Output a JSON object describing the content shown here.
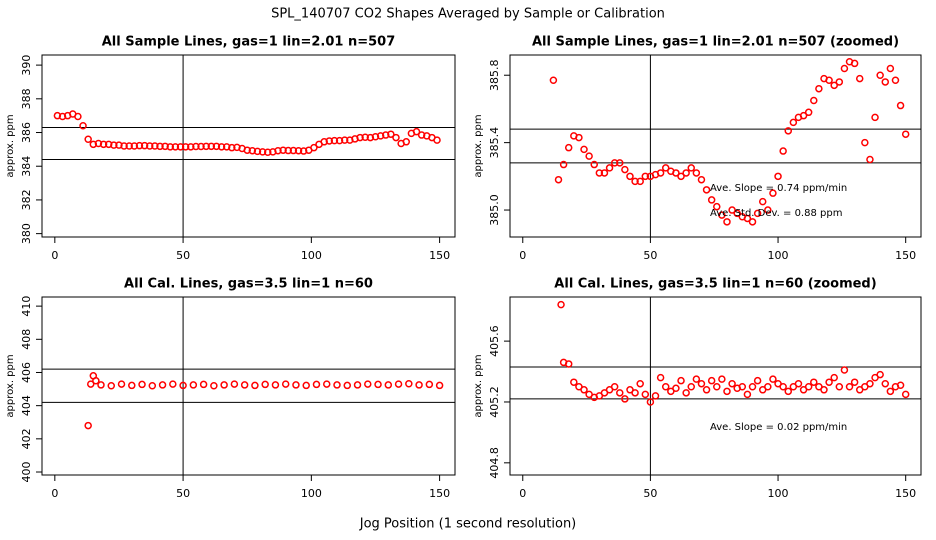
{
  "title": "SPL_140707  CO2 Shapes Averaged by Sample or Calibration",
  "x_label": "Jog Position (1 second resolution)",
  "chart_data": [
    {
      "type": "scatter",
      "title": "All Sample Lines, gas=1 lin=2.01 n=507",
      "y_label": "approx. ppm",
      "color": "#ff0000",
      "xlim": [
        -5,
        156
      ],
      "ylim": [
        379.8,
        390.6
      ],
      "xticks": [
        0,
        50,
        100,
        150
      ],
      "yticks": [
        380,
        382,
        384,
        386,
        388,
        390
      ],
      "hlines": [
        386.3,
        384.4
      ],
      "vline": 50,
      "x": [
        1,
        3,
        5,
        7,
        9,
        11,
        13,
        15,
        17,
        19,
        21,
        23,
        25,
        27,
        29,
        31,
        33,
        35,
        37,
        39,
        41,
        43,
        45,
        47,
        49,
        51,
        53,
        55,
        57,
        59,
        61,
        63,
        65,
        67,
        69,
        71,
        73,
        75,
        77,
        79,
        81,
        83,
        85,
        87,
        89,
        91,
        93,
        95,
        97,
        99,
        101,
        103,
        105,
        107,
        109,
        111,
        113,
        115,
        117,
        119,
        121,
        123,
        125,
        127,
        129,
        131,
        133,
        135,
        137,
        139,
        141,
        143,
        145,
        147,
        149
      ],
      "values": [
        387.0,
        386.95,
        387.0,
        387.1,
        386.95,
        386.4,
        385.6,
        385.3,
        385.35,
        385.3,
        385.3,
        385.25,
        385.25,
        385.2,
        385.2,
        385.2,
        385.22,
        385.22,
        385.2,
        385.2,
        385.18,
        385.18,
        385.15,
        385.15,
        385.15,
        385.15,
        385.15,
        385.17,
        385.17,
        385.18,
        385.18,
        385.18,
        385.15,
        385.15,
        385.1,
        385.12,
        385.05,
        384.95,
        384.92,
        384.88,
        384.85,
        384.83,
        384.85,
        384.92,
        384.95,
        384.93,
        384.93,
        384.92,
        384.9,
        384.95,
        385.1,
        385.3,
        385.45,
        385.5,
        385.52,
        385.52,
        385.55,
        385.55,
        385.62,
        385.7,
        385.72,
        385.7,
        385.75,
        385.8,
        385.85,
        385.9,
        385.7,
        385.35,
        385.45,
        385.95,
        386.05,
        385.85,
        385.8,
        385.7,
        385.55
      ]
    },
    {
      "type": "scatter",
      "title": "All Sample Lines, gas=1 lin=2.01 n=507 (zoomed)",
      "y_label": "approx. ppm",
      "color": "#ff0000",
      "xlim": [
        -5,
        156
      ],
      "ylim": [
        384.84,
        385.92
      ],
      "xticks": [
        0,
        50,
        100,
        150
      ],
      "yticks": [
        {
          "value": 385,
          "label": "385.0"
        },
        385.4,
        385.8
      ],
      "hlines": [
        385.48,
        385.28
      ],
      "vline": 50,
      "annotations": [
        "Ave. Slope =  0.74  ppm/min",
        "Ave. Std. Dev. =  0.88  ppm"
      ],
      "x": [
        12,
        14,
        16,
        18,
        20,
        22,
        24,
        26,
        28,
        30,
        32,
        34,
        36,
        38,
        40,
        42,
        44,
        46,
        48,
        50,
        52,
        54,
        56,
        58,
        60,
        62,
        64,
        66,
        68,
        70,
        72,
        74,
        76,
        78,
        80,
        82,
        84,
        86,
        88,
        90,
        92,
        94,
        96,
        98,
        100,
        102,
        104,
        106,
        108,
        110,
        112,
        114,
        116,
        118,
        120,
        122,
        124,
        126,
        128,
        130,
        132,
        134,
        136,
        138,
        140,
        142,
        144,
        146,
        148,
        150
      ],
      "values": [
        385.77,
        385.18,
        385.27,
        385.37,
        385.44,
        385.43,
        385.36,
        385.32,
        385.27,
        385.22,
        385.22,
        385.25,
        385.28,
        385.28,
        385.24,
        385.2,
        385.17,
        385.17,
        385.2,
        385.2,
        385.21,
        385.22,
        385.25,
        385.23,
        385.22,
        385.2,
        385.22,
        385.25,
        385.22,
        385.18,
        385.12,
        385.06,
        385.02,
        384.97,
        384.93,
        385.0,
        384.98,
        384.96,
        384.95,
        384.93,
        384.98,
        385.05,
        385.0,
        385.1,
        385.2,
        385.35,
        385.47,
        385.52,
        385.55,
        385.56,
        385.58,
        385.65,
        385.72,
        385.78,
        385.77,
        385.74,
        385.76,
        385.84,
        385.88,
        385.87,
        385.78,
        385.4,
        385.3,
        385.55,
        385.8,
        385.76,
        385.84,
        385.77,
        385.62,
        385.45
      ]
    },
    {
      "type": "scatter",
      "title": "All Cal. Lines, gas=3.5 lin=1 n=60",
      "y_label": "approx. ppm",
      "color": "#ff0000",
      "xlim": [
        -5,
        156
      ],
      "ylim": [
        399.82,
        410.55
      ],
      "xticks": [
        0,
        50,
        100,
        150
      ],
      "yticks": [
        400,
        402,
        404,
        406,
        408,
        410
      ],
      "hlines": [
        406.2,
        404.2
      ],
      "vline": 50,
      "x": [
        13,
        14,
        15,
        16,
        18,
        22,
        26,
        30,
        34,
        38,
        42,
        46,
        50,
        54,
        58,
        62,
        66,
        70,
        74,
        78,
        82,
        86,
        90,
        94,
        98,
        102,
        106,
        110,
        114,
        118,
        122,
        126,
        130,
        134,
        138,
        142,
        146,
        150
      ],
      "values": [
        402.8,
        405.3,
        405.8,
        405.5,
        405.25,
        405.2,
        405.3,
        405.22,
        405.28,
        405.2,
        405.25,
        405.3,
        405.22,
        405.25,
        405.28,
        405.2,
        405.25,
        405.3,
        405.25,
        405.22,
        405.28,
        405.25,
        405.3,
        405.25,
        405.22,
        405.28,
        405.3,
        405.25,
        405.22,
        405.25,
        405.3,
        405.28,
        405.25,
        405.3,
        405.32,
        405.25,
        405.28,
        405.22
      ]
    },
    {
      "type": "scatter",
      "title": "All Cal. Lines, gas=3.5 lin=1 n=60 (zoomed)",
      "y_label": "approx. ppm",
      "color": "#ff0000",
      "xlim": [
        -5,
        156
      ],
      "ylim": [
        404.72,
        405.89
      ],
      "xticks": [
        0,
        50,
        100,
        150
      ],
      "yticks": [
        404.8,
        405.2,
        405.6
      ],
      "hlines": [
        405.43,
        405.22
      ],
      "vline": 50,
      "annotations": [
        "Ave. Slope =  0.02  ppm/min"
      ],
      "x": [
        15,
        16,
        18,
        20,
        22,
        24,
        26,
        28,
        30,
        32,
        34,
        36,
        38,
        40,
        42,
        44,
        46,
        48,
        50,
        52,
        54,
        56,
        58,
        60,
        62,
        64,
        66,
        68,
        70,
        72,
        74,
        76,
        78,
        80,
        82,
        84,
        86,
        88,
        90,
        92,
        94,
        96,
        98,
        100,
        102,
        104,
        106,
        108,
        110,
        112,
        114,
        116,
        118,
        120,
        122,
        124,
        126,
        128,
        130,
        132,
        134,
        136,
        138,
        140,
        142,
        144,
        146,
        148,
        150
      ],
      "values": [
        405.84,
        405.46,
        405.45,
        405.33,
        405.3,
        405.28,
        405.25,
        405.23,
        405.24,
        405.26,
        405.28,
        405.3,
        405.26,
        405.22,
        405.28,
        405.26,
        405.32,
        405.25,
        405.2,
        405.24,
        405.36,
        405.3,
        405.27,
        405.29,
        405.34,
        405.26,
        405.3,
        405.35,
        405.32,
        405.28,
        405.34,
        405.3,
        405.35,
        405.27,
        405.32,
        405.29,
        405.3,
        405.25,
        405.3,
        405.34,
        405.28,
        405.3,
        405.35,
        405.32,
        405.3,
        405.27,
        405.3,
        405.32,
        405.28,
        405.3,
        405.33,
        405.3,
        405.28,
        405.33,
        405.36,
        405.3,
        405.41,
        405.3,
        405.33,
        405.28,
        405.3,
        405.32,
        405.36,
        405.38,
        405.32,
        405.27,
        405.3,
        405.31,
        405.25
      ]
    }
  ]
}
